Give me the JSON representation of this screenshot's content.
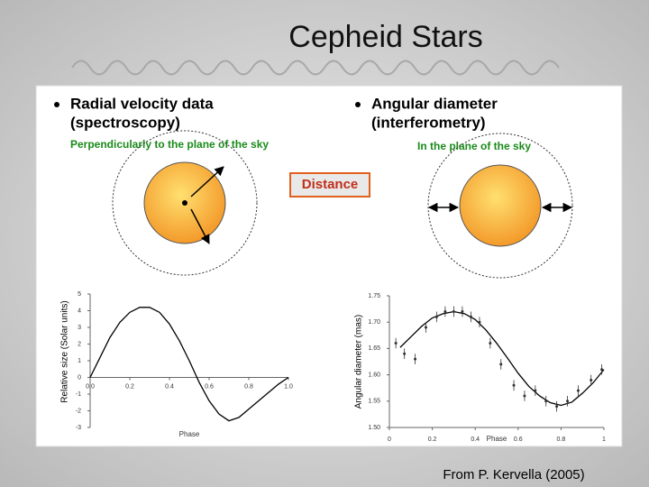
{
  "title": "Cepheid Stars",
  "bullets": [
    {
      "lines": [
        "Radial velocity data",
        "(spectroscopy)"
      ],
      "note": "Perpendicularly to the plane of the sky"
    },
    {
      "lines": [
        "Angular diameter",
        "(interferometry)"
      ],
      "note": "In the plane of the sky"
    }
  ],
  "diagram_label": "Distance",
  "credit": "From P. Kervella (2005)",
  "chart_data": [
    {
      "type": "line",
      "xlabel": "Phase",
      "ylabel": "Relative size (Solar units)",
      "color": "#000000",
      "x": [
        0,
        0.05,
        0.1,
        0.15,
        0.2,
        0.25,
        0.3,
        0.35,
        0.4,
        0.45,
        0.5,
        0.55,
        0.6,
        0.65,
        0.7,
        0.75,
        0.8,
        0.85,
        0.9,
        0.95,
        1.0
      ],
      "values": [
        0,
        1.2,
        2.4,
        3.3,
        3.9,
        4.2,
        4.2,
        3.9,
        3.2,
        2.2,
        1.0,
        -0.3,
        -1.4,
        -2.2,
        -2.6,
        -2.4,
        -1.9,
        -1.4,
        -0.9,
        -0.4,
        0
      ],
      "xlim": [
        0,
        1
      ],
      "xticks": [
        {
          "value": 0,
          "label": "0.0"
        },
        0.2,
        0.4,
        0.6,
        0.8,
        {
          "value": 1,
          "label": "1.0"
        }
      ],
      "ylim": [
        -3,
        5
      ],
      "yticks": [
        -3,
        -2,
        -1,
        0,
        1,
        2,
        3,
        4,
        5
      ]
    },
    {
      "type": "scatter",
      "xlabel": "Phase",
      "ylabel": "Angular diameter (mas)",
      "x": [
        0.03,
        0.07,
        0.12,
        0.17,
        0.22,
        0.26,
        0.3,
        0.34,
        0.38,
        0.42,
        0.47,
        0.52,
        0.58,
        0.63,
        0.68,
        0.73,
        0.78,
        0.83,
        0.88,
        0.94,
        0.99
      ],
      "series": [
        {
          "color": "#333333",
          "values": [
            1.66,
            1.64,
            1.63,
            1.69,
            1.71,
            1.72,
            1.72,
            1.72,
            1.71,
            1.7,
            1.66,
            1.62,
            1.58,
            1.56,
            1.57,
            1.55,
            1.54,
            1.55,
            1.57,
            1.59,
            1.61
          ],
          "errors": [
            0.01,
            0.01,
            0.01,
            0.01,
            0.01,
            0.01,
            0.01,
            0.01,
            0.01,
            0.01,
            0.01,
            0.01,
            0.01,
            0.01,
            0.01,
            0.01,
            0.01,
            0.01,
            0.01,
            0.01,
            0.01
          ]
        }
      ],
      "fit": {
        "color": "#000000",
        "x": [
          0.05,
          0.1,
          0.15,
          0.2,
          0.25,
          0.3,
          0.35,
          0.4,
          0.45,
          0.5,
          0.55,
          0.6,
          0.65,
          0.7,
          0.75,
          0.8,
          0.85,
          0.9,
          0.95,
          1.0
        ],
        "values": [
          1.652,
          1.672,
          1.692,
          1.708,
          1.716,
          1.72,
          1.716,
          1.705,
          1.685,
          1.66,
          1.632,
          1.603,
          1.578,
          1.56,
          1.547,
          1.542,
          1.548,
          1.565,
          1.585,
          1.61
        ]
      },
      "xlim": [
        0,
        1
      ],
      "xticks": [
        0,
        0.2,
        0.4,
        0.6,
        0.8,
        1
      ],
      "ylim": [
        1.5,
        1.75
      ],
      "yticks": [
        {
          "value": 1.5,
          "label": "1.50"
        },
        1.55,
        {
          "value": 1.6,
          "label": "1.60"
        },
        1.65,
        {
          "value": 1.7,
          "label": "1.70"
        },
        1.75
      ]
    }
  ]
}
